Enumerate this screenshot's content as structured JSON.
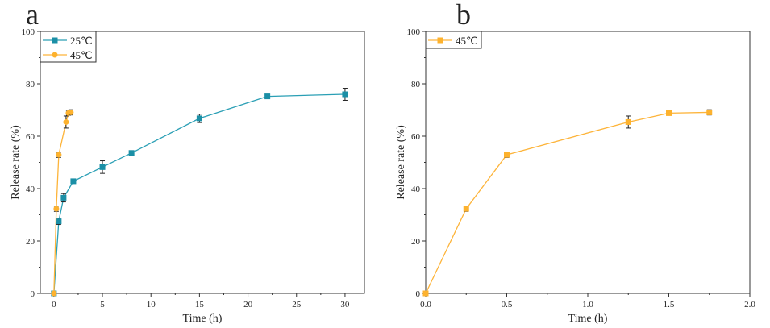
{
  "chart_data": [
    {
      "type": "line",
      "panel_label": "a",
      "xlabel": "Time (h)",
      "ylabel": "Release rate (%)",
      "xlim": [
        -1.4,
        32
      ],
      "ylim": [
        0,
        100
      ],
      "xticks": [
        0,
        5,
        10,
        15,
        20,
        25,
        30
      ],
      "yticks": [
        0,
        20,
        40,
        60,
        80,
        100
      ],
      "grid": false,
      "legend_position": "top-left",
      "series": [
        {
          "name": "25℃",
          "color": "#2a9fb5",
          "marker_color": "#1b8fa6",
          "marker": "square",
          "x": [
            0,
            0.5,
            1,
            2,
            5,
            8,
            15,
            22,
            30
          ],
          "y": [
            0,
            27.5,
            36.5,
            42.8,
            48.2,
            53.6,
            66.8,
            75.2,
            76.0
          ],
          "error": [
            0,
            1.2,
            1.6,
            0.5,
            2.4,
            0.4,
            1.6,
            0.4,
            2.3
          ]
        },
        {
          "name": "45℃",
          "color": "#fdb43a",
          "marker_color": "#fdb22e",
          "marker": "circle",
          "x": [
            0,
            0.25,
            0.5,
            1.25,
            1.5,
            1.75
          ],
          "y": [
            0,
            32.3,
            52.9,
            65.4,
            68.8,
            69.1
          ],
          "error": [
            0,
            1.0,
            1.0,
            2.3,
            0.8,
            1.0
          ]
        }
      ]
    },
    {
      "type": "line",
      "panel_label": "b",
      "xlabel": "Time (h)",
      "ylabel": "Release rate (%)",
      "xlim": [
        0,
        2
      ],
      "ylim": [
        0,
        100
      ],
      "xticks": [
        "0.0",
        "0.5",
        "1.0",
        "1.5",
        "2.0"
      ],
      "yticks": [
        0,
        20,
        40,
        60,
        80,
        100
      ],
      "grid": false,
      "legend_position": "top-left",
      "series": [
        {
          "name": "45℃",
          "color": "#fdb43a",
          "marker_color": "#fdb22e",
          "marker": "square",
          "x": [
            0,
            0.25,
            0.5,
            1.25,
            1.5,
            1.75
          ],
          "y": [
            0,
            32.3,
            52.9,
            65.4,
            68.8,
            69.1
          ],
          "error": [
            0,
            1.0,
            1.0,
            2.3,
            0.8,
            1.0
          ]
        }
      ]
    }
  ]
}
